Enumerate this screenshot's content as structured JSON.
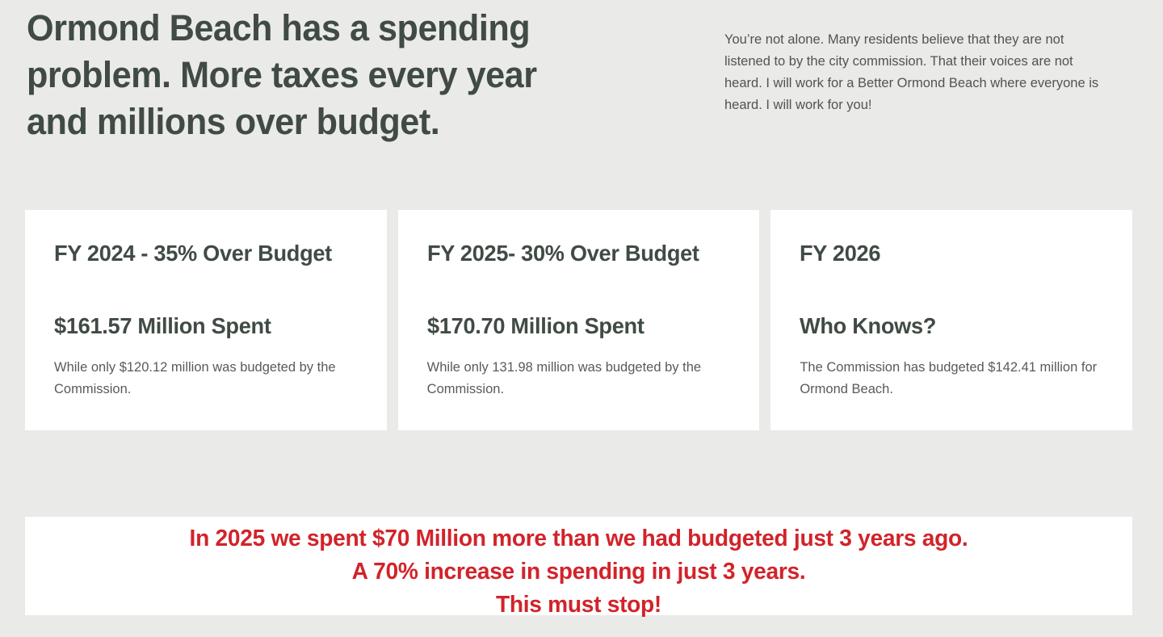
{
  "header": {
    "title": "Ormond Beach has a spending problem. More taxes every year and millions over budget.",
    "intro": "You’re not alone. Many residents believe that they are not listened to by the city commission. That their voices are not heard. I will work for a Better Ormond Beach where everyone is heard. I will work for you!"
  },
  "cards": [
    {
      "title": "FY 2024 - 35% Over Budget",
      "amount": "$161.57 Million Spent",
      "body": "While only $120.12 million was budgeted by the Commission."
    },
    {
      "title": "FY 2025- 30% Over Budget",
      "amount": "$170.70 Million Spent",
      "body": "While only 131.98 million was budgeted by the Commission."
    },
    {
      "title": "FY 2026",
      "amount": "Who Knows?",
      "body": "The Commission has budgeted $142.41 million for Ormond Beach."
    }
  ],
  "banner": {
    "lines": [
      "In 2025 we spent $70 Million more than we had budgeted just 3 years ago.",
      "A 70% increase in spending in just 3 years.",
      "This must stop!"
    ]
  },
  "colors": {
    "background": "#eaeae8",
    "heading": "#404b44",
    "card_background": "#ffffff",
    "banner_text": "#d2232a"
  }
}
